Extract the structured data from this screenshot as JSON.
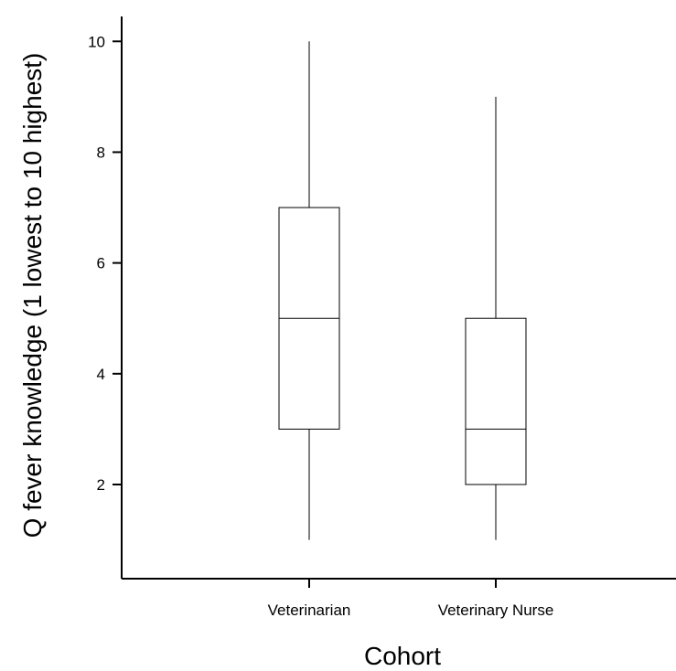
{
  "chart_data": {
    "type": "box",
    "xlabel": "Cohort",
    "ylabel": "Q fever knowledge (1 lowest to 10 highest)",
    "categories": [
      "Veterinarian",
      "Veterinary Nurse"
    ],
    "boxes": [
      {
        "name": "Veterinarian",
        "min": 1,
        "q1": 3,
        "median": 5,
        "q3": 7,
        "max": 10
      },
      {
        "name": "Veterinary Nurse",
        "min": 1,
        "q1": 2,
        "median": 3,
        "q3": 5,
        "max": 9
      }
    ],
    "ylim": [
      0.3,
      10.45
    ],
    "yticks": [
      2,
      4,
      6,
      8,
      10
    ],
    "grid": false,
    "legend": "none"
  }
}
